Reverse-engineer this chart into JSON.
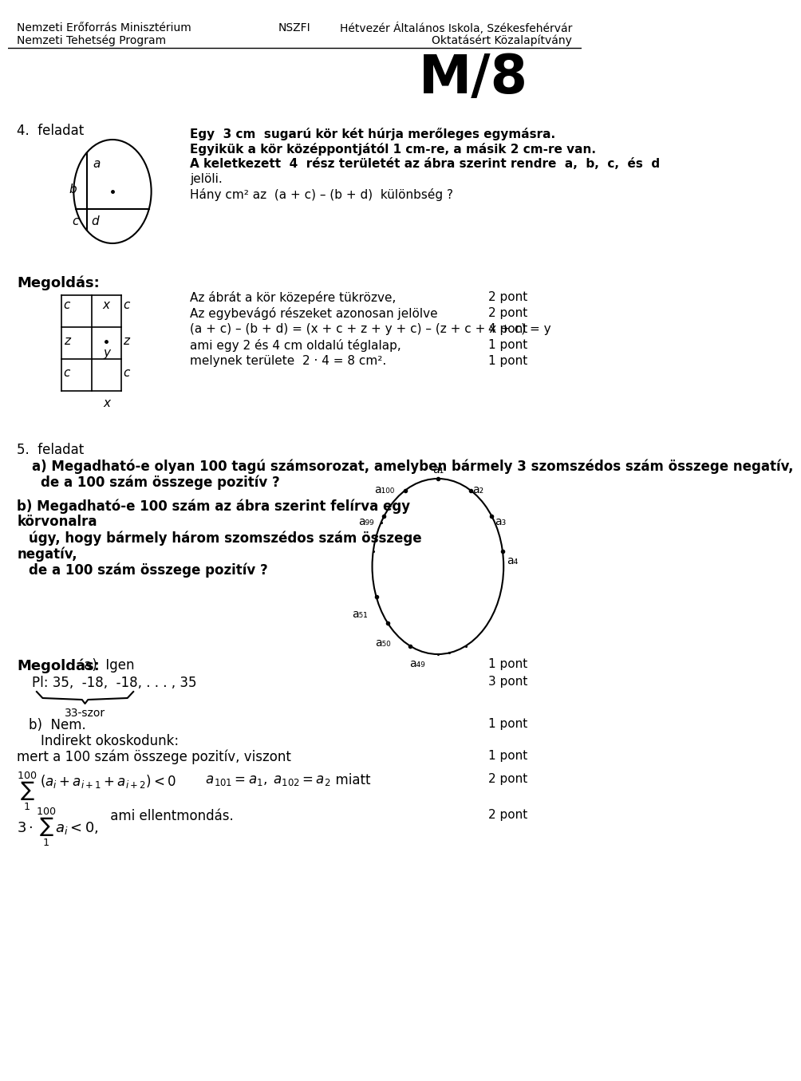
{
  "header_left": [
    "Nemzeti Erőforrás Minisztérium",
    "Nemzeti Tehetség Program"
  ],
  "header_center": "NSZFI",
  "header_right": [
    "Hétvezér Általános Iskola, Székesfehérvár",
    "Oktatásért Közalapítvány"
  ],
  "title": "M/8",
  "problem4_title": "4.  feladat",
  "problem4_text": [
    "Egy  3 cm  sugarú kör két húrja merőleges egymásra.",
    "Egyikük a kör középpontjától 1 cm-re, a másik 2 cm-re van.",
    "A keletkezett  4  rész területét az ábra szerint rendre  a,  b,  c,  és  d",
    "jelöli.",
    "Hány cm² az  (a + c) – (b + d)  különbség ?"
  ],
  "megoldas_label": "Megoldás:",
  "megoldas4_lines": [
    [
      "Az ábrát a kör közepére tükrözve,",
      "2 pont"
    ],
    [
      "Az egybevágó részeket azonosan jelölve",
      "2 pont"
    ],
    [
      "(a + c) – (b + d) = (x + c + z + y + c) – (z + c + x + c) = y",
      "4 pont"
    ],
    [
      "ami egy 2 és 4 cm oldalú téglalap,",
      "1 pont"
    ],
    [
      "melynek területe  2 · 4 = 8 cm².",
      "1 pont"
    ]
  ],
  "problem5_title": "5.  feladat",
  "problem5a_text": "a) Megadható-e olyan 100 tagú számsorozat, amelyben bármely 3 szomszédos szám összege negatív,\n    de a 100 szám összege pozitív ?",
  "problem5b_text": "b) Megadható-e 100 szám az ábra szerint felírva egy\nkörvonalra\n    úgy, hogy bármely három szomszédos szám összege\nnegatív,\n    de a 100 szám összege pozitív ?",
  "megoldas5_lines": [
    [
      "Megoldás:  a)  Igen",
      "1 pont"
    ],
    [
      "    Pl: 35,  -18,  -18, . . . , 35",
      "3 pont"
    ],
    [
      "b)  Nem.",
      "1 pont"
    ],
    [
      "    Indirekt okoskodunk:",
      ""
    ],
    [
      "mert a 100 szám összege pozitív, viszont",
      "1 pont"
    ],
    [
      "",
      "2 pont"
    ],
    [
      "",
      "2 pont"
    ]
  ],
  "bg_color": "#ffffff",
  "text_color": "#000000"
}
